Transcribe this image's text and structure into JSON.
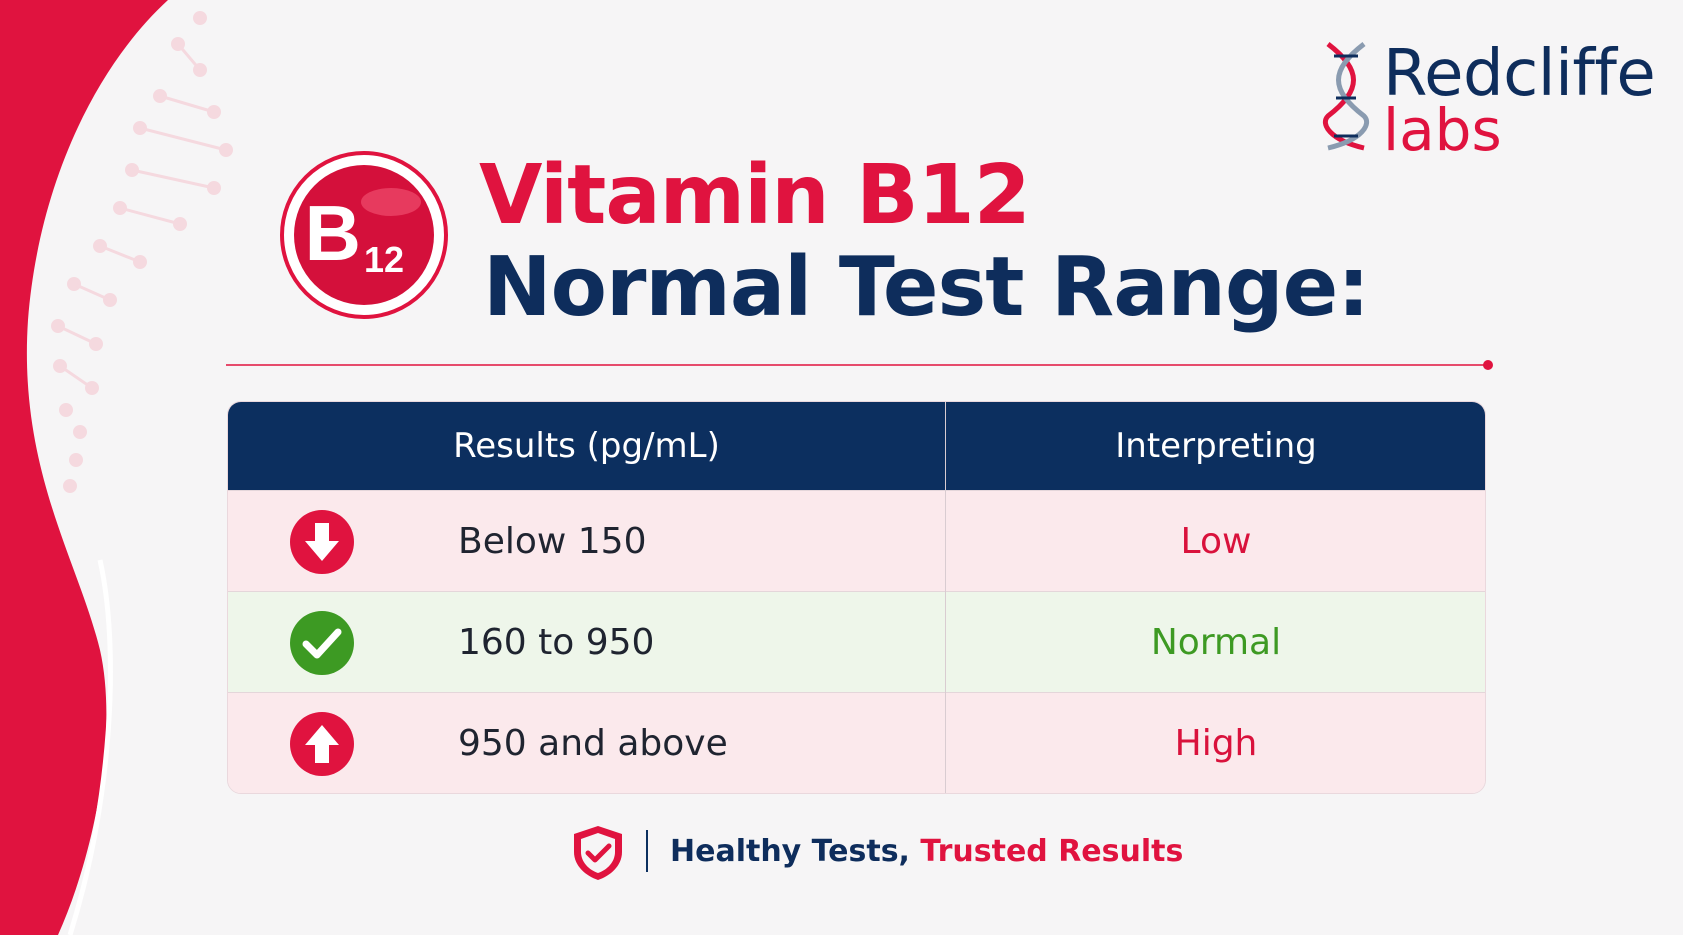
{
  "brand": {
    "line1": "Redcliffe",
    "line2": "labs"
  },
  "badge": {
    "letter": "B",
    "subscript": "12"
  },
  "title": {
    "line1": "Vitamin B12",
    "line2": "Normal Test Range:"
  },
  "table": {
    "headers": [
      "Results (pg/mL)",
      "Interpreting"
    ],
    "rows": [
      {
        "icon": "arrow-down-icon",
        "range": "Below 150",
        "status": "Low"
      },
      {
        "icon": "check-icon",
        "range": "160 to 950",
        "status": "Normal"
      },
      {
        "icon": "arrow-up-icon",
        "range": "950 and above",
        "status": "High"
      }
    ]
  },
  "footer": {
    "text_a": "Healthy Tests,",
    "text_b": "Trusted Results",
    "icon": "shield-check-icon"
  },
  "colors": {
    "brand_red": "#e0133f",
    "navy": "#0c2f5f",
    "green": "#3d9a23",
    "pink_row": "#fbe9ec",
    "green_row": "#eef6ea"
  }
}
